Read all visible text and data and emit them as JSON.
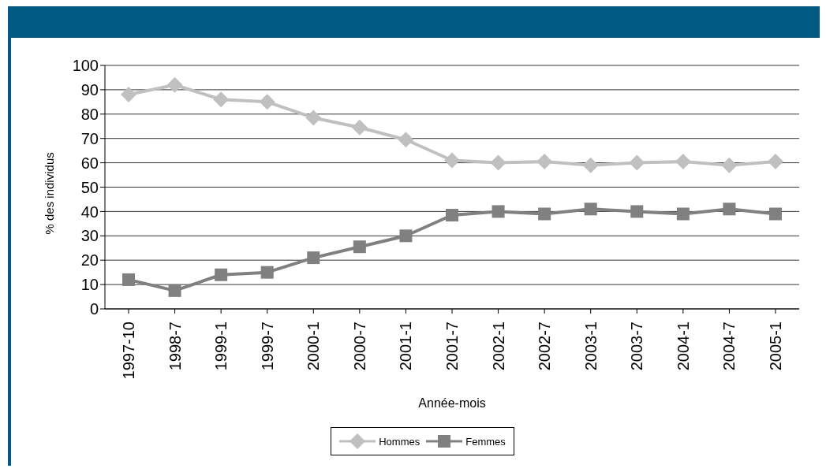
{
  "chart_data": {
    "type": "line",
    "xlabel": "Année-mois",
    "ylabel": "% des individus",
    "categories": [
      "1997-10",
      "1998-7",
      "1999-1",
      "1999-7",
      "2000-1",
      "2000-7",
      "2001-1",
      "2001-7",
      "2002-1",
      "2002-7",
      "2003-1",
      "2003-7",
      "2004-1",
      "2004-7",
      "2005-1"
    ],
    "series": [
      {
        "name": "Hommes",
        "color": "#c0c0c0",
        "marker": "diamond",
        "values": [
          88,
          92,
          86,
          85,
          78.5,
          74.5,
          69.5,
          61,
          60,
          60.5,
          59,
          60,
          60.5,
          59,
          60.5
        ]
      },
      {
        "name": "Femmes",
        "color": "#808080",
        "marker": "square",
        "values": [
          12,
          7.5,
          14,
          15,
          21,
          25.5,
          30,
          38.5,
          40,
          39,
          41,
          40,
          39,
          41,
          39
        ]
      }
    ],
    "ylim": [
      0,
      100
    ],
    "yticks": [
      0,
      10,
      20,
      30,
      40,
      50,
      60,
      70,
      80,
      90,
      100
    ],
    "grid": "y",
    "legend": "bottom"
  }
}
